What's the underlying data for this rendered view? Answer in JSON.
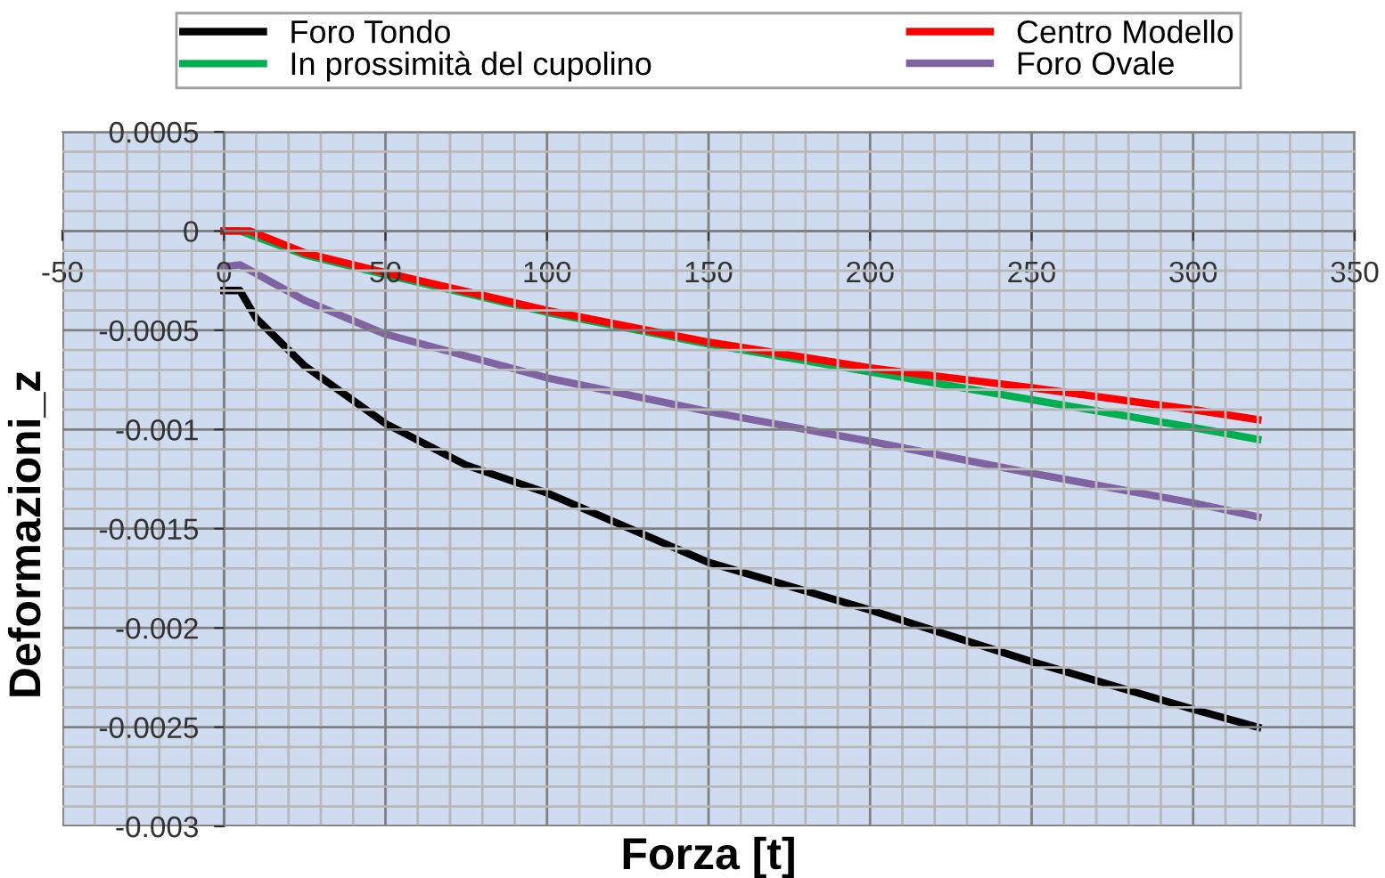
{
  "chart_data": {
    "type": "line",
    "xlabel": "Forza [t]",
    "ylabel": "Deformazioni_z",
    "xlim": [
      -50,
      350
    ],
    "ylim": [
      -0.003,
      0.0005
    ],
    "xticks": [
      -50,
      0,
      50,
      100,
      150,
      200,
      250,
      300,
      350
    ],
    "yticks": [
      -0.003,
      -0.0025,
      -0.002,
      -0.0015,
      -0.001,
      -0.0005,
      0,
      0.0005
    ],
    "grid": true,
    "legend": "top",
    "marker": "none",
    "line_style": "solid",
    "series": [
      {
        "name": "Foro Tondo",
        "color": "#000000",
        "x": [
          0,
          5,
          10,
          25,
          50,
          75,
          100,
          150,
          200,
          250,
          300,
          320
        ],
        "values": [
          -0.0003,
          -0.0003,
          -0.00044,
          -0.00068,
          -0.00097,
          -0.00118,
          -0.00132,
          -0.00167,
          -0.00191,
          -0.00217,
          -0.00241,
          -0.0025
        ]
      },
      {
        "name": "In prossimità del cupolino",
        "color": "#00b050",
        "x": [
          0,
          5,
          25,
          50,
          100,
          150,
          200,
          250,
          300,
          320
        ],
        "values": [
          0,
          0,
          -0.00012,
          -0.00022,
          -0.00041,
          -0.00057,
          -0.00071,
          -0.00085,
          -0.00099,
          -0.00105
        ]
      },
      {
        "name": "Centro Modello",
        "color": "#ff0000",
        "x": [
          0,
          8,
          25,
          50,
          100,
          150,
          200,
          250,
          300,
          320
        ],
        "values": [
          0,
          0,
          -0.00011,
          -0.00021,
          -0.0004,
          -0.00056,
          -0.00069,
          -0.00079,
          -0.0009,
          -0.00095
        ]
      },
      {
        "name": "Foro Ovale",
        "color": "#8064a2",
        "x": [
          0,
          5,
          25,
          50,
          100,
          150,
          200,
          250,
          300,
          320
        ],
        "values": [
          -0.00018,
          -0.00017,
          -0.00035,
          -0.00052,
          -0.00074,
          -0.00091,
          -0.00106,
          -0.00122,
          -0.00137,
          -0.00144
        ]
      }
    ]
  }
}
